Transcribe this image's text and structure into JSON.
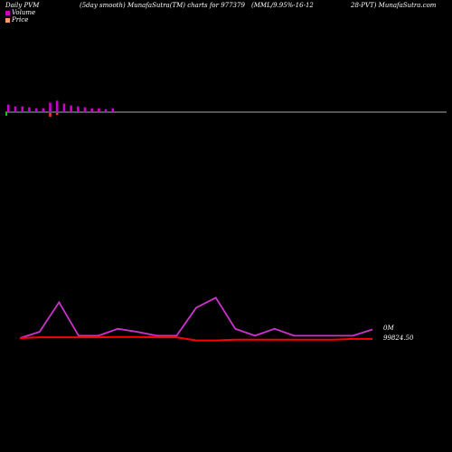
{
  "header": {
    "left": "Daily PVM",
    "center1": "(5day smooth) MunafaSutra(TM) charts for 977379",
    "center2": "(MML/9.95%-16-12",
    "right": "28-PVT) MunafaSutra.com"
  },
  "legend": {
    "volume_label": "Volume",
    "price_label": "Price",
    "volume_color": "#cc00cc",
    "price_color": "#ff9966"
  },
  "colors": {
    "background": "#000000",
    "volume_up": "#cc00cc",
    "volume_down": "#cc00cc",
    "volume_line": "#cc33cc",
    "price_line": "#ff0000",
    "baseline": "#aaaaaa",
    "marker_green": "#00cc00",
    "marker_red": "#ff3333"
  },
  "chart_data": [
    {
      "type": "bar",
      "title": "Volume",
      "values": [
        4,
        3,
        3,
        2.5,
        2,
        2,
        5,
        6,
        4.5,
        3.5,
        3,
        2.5,
        2,
        2,
        1.5,
        2
      ],
      "down_values": [
        0,
        0,
        0,
        0,
        0,
        0,
        2,
        1,
        0,
        0,
        0,
        0,
        0,
        0,
        0,
        0
      ]
    },
    {
      "type": "line",
      "series": [
        {
          "name": "Volume",
          "values": [
            0,
            1.6,
            9.2,
            0.6,
            0.6,
            2.4,
            1.6,
            0.6,
            0.6,
            7.8,
            10.4,
            2.4,
            0.6,
            2.4,
            0.6,
            0.6,
            0.6,
            0.6,
            2.2
          ]
        },
        {
          "name": "Price",
          "values": [
            0,
            0.2,
            0.2,
            0.2,
            0.2,
            0.3,
            0.3,
            0.2,
            0.2,
            -0.6,
            -0.6,
            -0.4,
            -0.4,
            -0.4,
            -0.4,
            -0.4,
            -0.4,
            -0.2,
            -0.2
          ]
        }
      ],
      "y_labels": [
        "0M",
        "99824.50"
      ]
    }
  ]
}
